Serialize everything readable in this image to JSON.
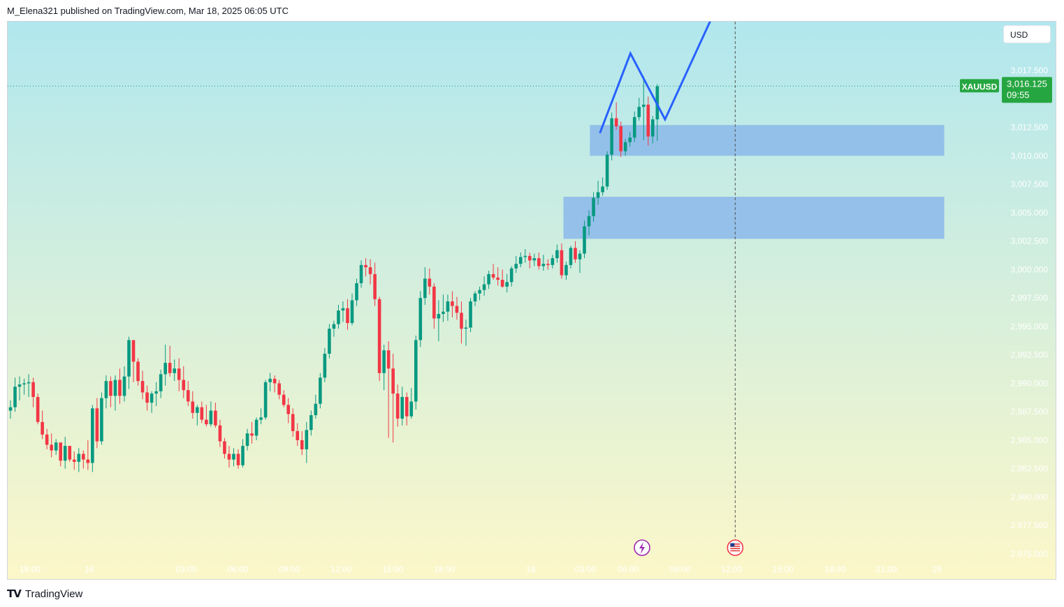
{
  "header": {
    "publisher": "M_Elena321 published on TradingView.com, Mar 18, 2025 06:05 UTC"
  },
  "currency_button": "USD",
  "footer": {
    "brand": "TradingView"
  },
  "colors": {
    "up": "#089981",
    "down": "#f23645",
    "zone": "#8fbce9",
    "projection": "#2962ff",
    "price_tag": "#26a641",
    "bg_top": "#b1e7ee",
    "bg_bottom": "#fcf7c9"
  },
  "chart_data": {
    "type": "candlestick",
    "symbol": "XAUUSD",
    "last_price": "3,016.125",
    "countdown": "09:55",
    "last_price_value": 3016.125,
    "ylim": [
      2974.6,
      3022.5
    ],
    "xlim": [
      0,
      220
    ],
    "y_ticks": [
      "3,017.500",
      "3,012.500",
      "3,010.000",
      "3,007.500",
      "3,005.000",
      "3,002.500",
      "3,000.000",
      "2,997.500",
      "2,995.000",
      "2,992.500",
      "2,990.000",
      "2,987.500",
      "2,985.000",
      "2,982.500",
      "2,980.000",
      "2,977.500",
      "2,975.000"
    ],
    "y_tick_values": [
      3017.5,
      3012.5,
      3010.0,
      3007.5,
      3005.0,
      3002.5,
      3000.0,
      2997.5,
      2995.0,
      2992.5,
      2990.0,
      2987.5,
      2985.0,
      2982.5,
      2980.0,
      2977.5,
      2975.0
    ],
    "x_ticks": [
      "18:00",
      "16",
      "03:00",
      "06:00",
      "09:00",
      "12:00",
      "15:00",
      "18:00",
      "18",
      "03:00",
      "06:00",
      "09:00",
      "12:00",
      "15:00",
      "18:00",
      "21:00",
      "19"
    ],
    "x_tick_values": [
      4.3,
      17.3,
      38.6,
      49.9,
      61.2,
      72.6,
      83.9,
      95.3,
      114.2,
      126.2,
      135.6,
      147.0,
      158.3,
      169.6,
      181.0,
      192.3,
      203.3
    ],
    "event_line_x": 159.1,
    "zones": [
      {
        "x0": 127.2,
        "x1": 205.0,
        "y0": 3010.0,
        "y1": 3012.7
      },
      {
        "x0": 121.4,
        "x1": 205.0,
        "y0": 3002.7,
        "y1": 3006.4
      }
    ],
    "projection_path": [
      [
        129.4,
        3012.0
      ],
      [
        136.1,
        3019.0
      ],
      [
        143.7,
        3013.2
      ],
      [
        154.5,
        3022.6
      ]
    ],
    "ohlc": [
      [
        2987.6,
        2988.5,
        2986.9,
        2987.9
      ],
      [
        2987.9,
        2990.5,
        2987.5,
        2989.7
      ],
      [
        2989.7,
        2990.6,
        2988.5,
        2989.9
      ],
      [
        2989.9,
        2990.4,
        2989.0,
        2990.0
      ],
      [
        2990.0,
        2990.8,
        2988.8,
        2990.1
      ],
      [
        2990.1,
        2990.5,
        2987.9,
        2988.8
      ],
      [
        2988.8,
        2989.1,
        2986.4,
        2986.6
      ],
      [
        2986.6,
        2987.6,
        2985.1,
        2985.5
      ],
      [
        2985.5,
        2986.0,
        2984.2,
        2984.6
      ],
      [
        2984.6,
        2985.6,
        2983.5,
        2984.1
      ],
      [
        2984.1,
        2985.1,
        2983.7,
        2984.8
      ],
      [
        2984.8,
        2984.7,
        2982.7,
        2983.2
      ],
      [
        2983.2,
        2985.3,
        2982.5,
        2984.5
      ],
      [
        2984.5,
        2984.5,
        2983.1,
        2983.3
      ],
      [
        2983.3,
        2984.0,
        2982.4,
        2983.1
      ],
      [
        2983.1,
        2984.3,
        2982.2,
        2983.8
      ],
      [
        2983.8,
        2984.1,
        2982.5,
        2983.3
      ],
      [
        2983.3,
        2985.0,
        2982.4,
        2983.0
      ],
      [
        2983.0,
        2988.1,
        2982.2,
        2987.8
      ],
      [
        2987.8,
        2988.7,
        2984.3,
        2984.9
      ],
      [
        2984.9,
        2989.2,
        2984.6,
        2988.7
      ],
      [
        2988.7,
        2990.7,
        2987.8,
        2990.2
      ],
      [
        2990.2,
        2990.6,
        2987.9,
        2988.9
      ],
      [
        2988.9,
        2990.7,
        2987.6,
        2990.3
      ],
      [
        2990.3,
        2991.3,
        2988.2,
        2988.9
      ],
      [
        2988.9,
        2991.5,
        2988.4,
        2990.6
      ],
      [
        2990.6,
        2994.1,
        2989.5,
        2993.8
      ],
      [
        2993.8,
        2993.8,
        2990.1,
        2991.9
      ],
      [
        2991.9,
        2992.2,
        2989.8,
        2990.2
      ],
      [
        2990.2,
        2991.1,
        2988.6,
        2989.2
      ],
      [
        2989.2,
        2989.8,
        2987.6,
        2988.3
      ],
      [
        2988.3,
        2989.3,
        2987.4,
        2989.1
      ],
      [
        2989.1,
        2990.1,
        2988.0,
        2989.3
      ],
      [
        2989.3,
        2991.2,
        2988.7,
        2990.8
      ],
      [
        2990.8,
        2993.4,
        2989.8,
        2991.8
      ],
      [
        2991.8,
        2993.3,
        2990.6,
        2990.9
      ],
      [
        2990.9,
        2992.1,
        2990.2,
        2991.3
      ],
      [
        2991.3,
        2992.2,
        2989.3,
        2990.3
      ],
      [
        2990.3,
        2991.5,
        2988.7,
        2989.4
      ],
      [
        2989.4,
        2990.2,
        2988.0,
        2988.4
      ],
      [
        2988.4,
        2989.3,
        2986.9,
        2987.4
      ],
      [
        2987.4,
        2988.1,
        2986.3,
        2987.9
      ],
      [
        2987.9,
        2988.4,
        2986.5,
        2986.8
      ],
      [
        2986.8,
        2988.1,
        2986.2,
        2986.4
      ],
      [
        2986.4,
        2988.4,
        2986.2,
        2987.6
      ],
      [
        2987.6,
        2988.3,
        2986.1,
        2986.3
      ],
      [
        2986.3,
        2986.8,
        2984.4,
        2984.9
      ],
      [
        2984.9,
        2985.2,
        2983.4,
        2983.8
      ],
      [
        2983.8,
        2984.5,
        2982.6,
        2983.3
      ],
      [
        2983.3,
        2984.3,
        2982.7,
        2983.8
      ],
      [
        2983.8,
        2984.2,
        2982.5,
        2982.8
      ],
      [
        2982.8,
        2985.1,
        2982.6,
        2984.5
      ],
      [
        2984.5,
        2986.0,
        2984.1,
        2985.6
      ],
      [
        2985.6,
        2986.6,
        2984.7,
        2985.4
      ],
      [
        2985.4,
        2987.0,
        2985.0,
        2986.8
      ],
      [
        2986.8,
        2987.8,
        2986.4,
        2987.0
      ],
      [
        2987.0,
        2990.3,
        2986.8,
        2990.1
      ],
      [
        2990.1,
        2990.9,
        2989.3,
        2990.4
      ],
      [
        2990.4,
        2990.7,
        2989.2,
        2990.0
      ],
      [
        2990.0,
        2990.3,
        2988.6,
        2989.0
      ],
      [
        2989.0,
        2989.4,
        2987.9,
        2988.1
      ],
      [
        2988.1,
        2988.7,
        2986.5,
        2987.3
      ],
      [
        2987.3,
        2987.8,
        2985.3,
        2985.8
      ],
      [
        2985.8,
        2986.5,
        2984.5,
        2985.0
      ],
      [
        2985.0,
        2985.8,
        2983.7,
        2984.2
      ],
      [
        2984.2,
        2986.6,
        2983.0,
        2985.9
      ],
      [
        2985.9,
        2987.6,
        2985.4,
        2987.2
      ],
      [
        2987.2,
        2989.0,
        2986.9,
        2988.2
      ],
      [
        2988.2,
        2990.9,
        2987.8,
        2990.5
      ],
      [
        2990.5,
        2993.1,
        2990.1,
        2992.6
      ],
      [
        2992.6,
        2995.2,
        2992.2,
        2994.8
      ],
      [
        2994.8,
        2995.5,
        2994.1,
        2995.2
      ],
      [
        2995.2,
        2996.9,
        2994.8,
        2996.4
      ],
      [
        2996.4,
        2997.2,
        2995.4,
        2996.6
      ],
      [
        2996.6,
        2997.4,
        2994.7,
        2995.3
      ],
      [
        2995.3,
        2997.9,
        2995.1,
        2997.3
      ],
      [
        2997.3,
        2999.2,
        2996.8,
        2998.8
      ],
      [
        2998.8,
        3000.8,
        2998.4,
        3000.4
      ],
      [
        3000.4,
        3001.0,
        2999.4,
        3000.2
      ],
      [
        3000.2,
        3000.9,
        2998.7,
        2999.6
      ],
      [
        2999.6,
        3000.6,
        2996.8,
        2997.4
      ],
      [
        2997.4,
        2997.6,
        2990.2,
        2990.9
      ],
      [
        2990.9,
        2993.4,
        2989.4,
        2992.9
      ],
      [
        2992.9,
        2993.7,
        2985.2,
        2991.3
      ],
      [
        2991.3,
        2992.6,
        2984.8,
        2989.1
      ],
      [
        2989.1,
        2989.9,
        2986.2,
        2986.9
      ],
      [
        2986.9,
        2989.7,
        2986.3,
        2988.8
      ],
      [
        2988.8,
        2989.2,
        2986.3,
        2987.1
      ],
      [
        2987.1,
        2989.6,
        2986.9,
        2988.4
      ],
      [
        2988.4,
        2994.2,
        2987.7,
        2993.8
      ],
      [
        2993.8,
        2998.1,
        2993.2,
        2997.5
      ],
      [
        2997.5,
        3000.2,
        2996.9,
        2999.2
      ],
      [
        2999.2,
        3000.1,
        2997.8,
        2998.5
      ],
      [
        2998.5,
        2998.8,
        2994.8,
        2995.7
      ],
      [
        2995.7,
        2997.3,
        2993.7,
        2996.1
      ],
      [
        2996.1,
        2997.8,
        2995.4,
        2996.3
      ],
      [
        2996.3,
        2997.8,
        2995.5,
        2997.2
      ],
      [
        2997.2,
        2998.1,
        2995.8,
        2996.8
      ],
      [
        2996.8,
        2997.6,
        2995.6,
        2996.2
      ],
      [
        2996.2,
        2997.2,
        2993.5,
        2994.8
      ],
      [
        2994.8,
        2995.6,
        2993.3,
        2994.9
      ],
      [
        2994.9,
        2997.5,
        2994.5,
        2997.2
      ],
      [
        2997.2,
        2998.1,
        2996.8,
        2997.9
      ],
      [
        2997.9,
        2998.5,
        2997.3,
        2998.2
      ],
      [
        2998.2,
        2999.4,
        2997.7,
        2998.7
      ],
      [
        2998.7,
        2999.9,
        2998.3,
        2999.6
      ],
      [
        2999.6,
        3000.5,
        2999.1,
        2999.3
      ],
      [
        2999.3,
        3000.2,
        2998.6,
        2999.1
      ],
      [
        2999.1,
        3000.0,
        2998.4,
        2998.5
      ],
      [
        2998.5,
        2999.6,
        2998.0,
        2998.9
      ],
      [
        2998.9,
        3000.3,
        2998.5,
        3000.1
      ],
      [
        3000.1,
        3001.2,
        2999.7,
        3000.5
      ],
      [
        3000.5,
        3001.5,
        3000.2,
        3001.1
      ],
      [
        3001.1,
        3001.8,
        3000.6,
        3001.2
      ],
      [
        3001.2,
        3001.5,
        3000.1,
        3000.8
      ],
      [
        3000.8,
        3001.4,
        3000.3,
        3001.0
      ],
      [
        3001.0,
        3001.5,
        3000.0,
        3000.3
      ],
      [
        3000.3,
        3001.3,
        2999.9,
        3000.5
      ],
      [
        3000.5,
        3000.9,
        3000.0,
        3000.4
      ],
      [
        3000.4,
        3001.3,
        3000.1,
        3001.0
      ],
      [
        3001.0,
        3002.2,
        3000.6,
        3001.7
      ],
      [
        3001.7,
        3002.3,
        2999.2,
        2999.5
      ],
      [
        2999.5,
        3000.7,
        2999.1,
        3000.4
      ],
      [
        3000.4,
        3002.1,
        3000.1,
        3001.9
      ],
      [
        3001.9,
        3002.5,
        3000.6,
        3000.9
      ],
      [
        3000.9,
        3001.7,
        2999.7,
        3001.4
      ],
      [
        3001.4,
        3004.3,
        3001.0,
        3003.8
      ],
      [
        3003.8,
        3005.2,
        3003.0,
        3004.7
      ],
      [
        3004.7,
        3006.8,
        3004.2,
        3006.3
      ],
      [
        3006.3,
        3007.8,
        3005.7,
        3006.8
      ],
      [
        3006.8,
        3008.1,
        3006.5,
        3007.3
      ],
      [
        3007.3,
        3010.4,
        3007.0,
        3010.1
      ],
      [
        3010.1,
        3013.8,
        3009.6,
        3013.3
      ],
      [
        3013.3,
        3014.7,
        3012.3,
        3012.6
      ],
      [
        3012.6,
        3013.0,
        3009.9,
        3010.4
      ],
      [
        3010.4,
        3011.5,
        3010.0,
        3011.2
      ],
      [
        3011.2,
        3012.1,
        3010.8,
        3011.6
      ],
      [
        3011.6,
        3013.9,
        3011.2,
        3013.4
      ],
      [
        3013.4,
        3015.1,
        3013.1,
        3014.3
      ],
      [
        3014.3,
        3017.0,
        3011.4,
        3014.5
      ],
      [
        3014.5,
        3015.2,
        3010.9,
        3011.7
      ],
      [
        3011.7,
        3013.5,
        3011.1,
        3013.2
      ],
      [
        3013.2,
        3016.3,
        3011.3,
        3016.1
      ]
    ]
  }
}
